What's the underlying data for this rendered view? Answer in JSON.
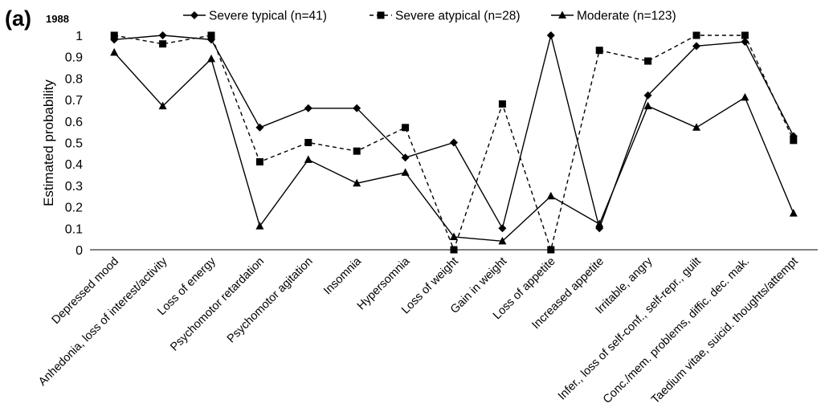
{
  "panel": {
    "letter": "(a)",
    "year": "1988"
  },
  "chart_data": {
    "type": "line",
    "title": "",
    "xlabel": "",
    "ylabel": "Estimated probability",
    "ylim": [
      0,
      1
    ],
    "yticks": [
      0,
      0.1,
      0.2,
      0.3,
      0.4,
      0.5,
      0.6,
      0.7,
      0.8,
      0.9,
      1
    ],
    "ytick_labels": [
      "0",
      "0.1",
      "0.2",
      "0.3",
      "0.4",
      "0.5",
      "0.6",
      "0.7",
      "0.8",
      "0.9",
      "1"
    ],
    "grid": false,
    "legend_position": "top",
    "categories": [
      "Depressed mood",
      "Anhedonia, loss of interest/activity",
      "Loss of energy",
      "Psychomotor retardation",
      "Psychomotor agitation",
      "Insomnia",
      "Hypersomnia",
      "Loss of weight",
      "Gain in weight",
      "Loss of appetite",
      "Increased appetite",
      "Irritable, angry",
      "Infer., loss of self-conf., self-repr., guilt",
      "Conc./mem. problems, diffic. dec. mak.",
      "Taedium vitae, suicid. thoughts/attempt"
    ],
    "series": [
      {
        "name": "Severe typical (n=41)",
        "marker": "diamond",
        "dash": "solid",
        "color": "#000000",
        "values": [
          0.98,
          1.0,
          0.98,
          0.57,
          0.66,
          0.66,
          0.43,
          0.5,
          0.1,
          1.0,
          0.1,
          0.72,
          0.95,
          0.97,
          0.53
        ]
      },
      {
        "name": "Severe atypical (n=28)",
        "marker": "square",
        "dash": "dashed",
        "color": "#000000",
        "values": [
          1.0,
          0.96,
          1.0,
          0.41,
          0.5,
          0.46,
          0.57,
          0.0,
          0.68,
          0.0,
          0.93,
          0.88,
          1.0,
          1.0,
          0.51
        ]
      },
      {
        "name": "Moderate (n=123)",
        "marker": "triangle",
        "dash": "solid",
        "color": "#000000",
        "values": [
          0.92,
          0.67,
          0.89,
          0.11,
          0.42,
          0.31,
          0.36,
          0.06,
          0.04,
          0.25,
          0.12,
          0.67,
          0.57,
          0.71,
          0.17
        ]
      }
    ]
  }
}
